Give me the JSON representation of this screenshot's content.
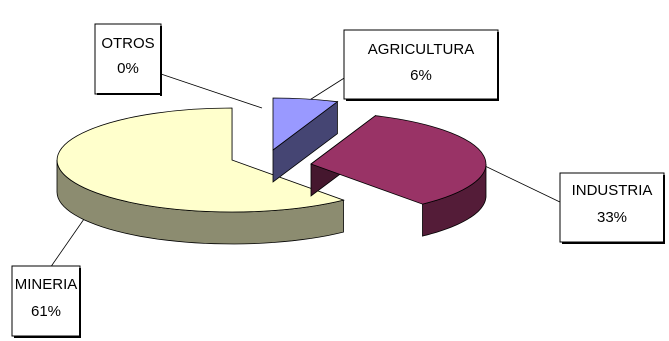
{
  "chart_data": {
    "type": "pie",
    "title": "",
    "categories": [
      "AGRICULTURA",
      "INDUSTRIA",
      "MINERIA",
      "OTROS"
    ],
    "values": [
      6,
      33,
      61,
      0
    ],
    "series": [
      {
        "values": [
          6,
          33,
          61,
          0
        ],
        "colors": [
          "#9999ff",
          "#993366",
          "#ffffcc",
          "#ffffff"
        ]
      }
    ],
    "labels": [
      {
        "name": "AGRICULTURA",
        "pct": "6%"
      },
      {
        "name": "INDUSTRIA",
        "pct": "33%"
      },
      {
        "name": "MINERIA",
        "pct": "61%"
      },
      {
        "name": "OTROS",
        "pct": "0%"
      }
    ],
    "style": "3d-exploded",
    "legend": "none"
  }
}
